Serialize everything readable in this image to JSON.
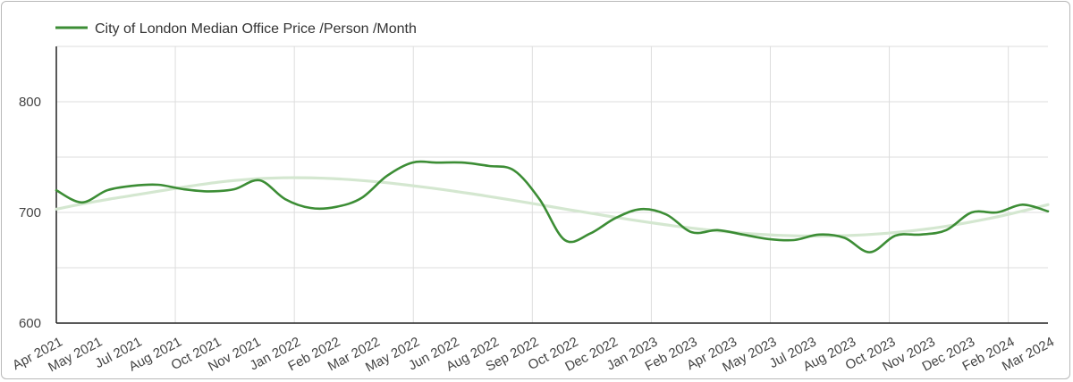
{
  "chart_data": {
    "type": "line",
    "title": "",
    "xlabel": "",
    "ylabel": "",
    "legend_position": "top-left",
    "grid": true,
    "ylim": [
      600,
      850
    ],
    "y_ticks": [
      600,
      700,
      800
    ],
    "x_labels": [
      "Apr 2021",
      "May 2021",
      "Jul 2021",
      "Aug 2021",
      "Oct 2021",
      "Nov 2021",
      "Jan 2022",
      "Feb 2022",
      "Mar 2022",
      "May 2022",
      "Jun 2022",
      "Aug 2022",
      "Sep 2022",
      "Oct 2022",
      "Dec 2022",
      "Jan 2023",
      "Feb 2023",
      "Apr 2023",
      "May 2023",
      "Jul 2023",
      "Aug 2023",
      "Oct 2023",
      "Nov 2023",
      "Dec 2023",
      "Feb 2024",
      "Mar 2024"
    ],
    "series": [
      {
        "name": "City of London Median Office Price /Person /Month",
        "color": "#3c8d35",
        "values": [
          720,
          709,
          720,
          724,
          725,
          721,
          719,
          721,
          729,
          712,
          704,
          705,
          713,
          733,
          745,
          745,
          745,
          742,
          738,
          712,
          675,
          681,
          695,
          703,
          698,
          682,
          684,
          680,
          676,
          675,
          680,
          677,
          664,
          679,
          680,
          684,
          700,
          700,
          707,
          701
        ]
      },
      {
        "name": "trendline",
        "color": "#d4e7d0",
        "values": [
          703,
          707.8,
          712.1,
          716.0,
          719.9,
          723.8,
          727.2,
          729.6,
          731.0,
          731.4,
          730.9,
          729.6,
          727.6,
          725.0,
          722.0,
          718.6,
          715.0,
          711.1,
          707.1,
          703.0,
          699.0,
          695.1,
          691.4,
          688.0,
          685.0,
          682.5,
          680.6,
          679.3,
          678.7,
          678.8,
          679.6,
          681.2,
          683.6,
          686.8,
          690.8,
          695.5,
          701.0,
          707.0
        ]
      }
    ]
  }
}
